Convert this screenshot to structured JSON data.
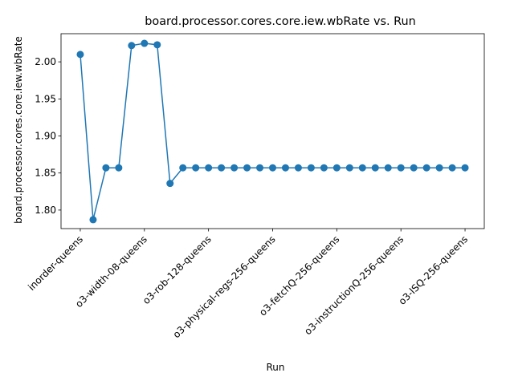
{
  "chart_data": {
    "type": "line",
    "title": "board.processor.cores.core.iew.wbRate vs. Run",
    "xlabel": "Run",
    "ylabel": "board.processor.cores.core.iew.wbRate",
    "xlim": [
      -1.5,
      31.5
    ],
    "ylim": [
      1.775,
      2.038
    ],
    "yticks": [
      1.8,
      1.85,
      1.9,
      1.95,
      2.0
    ],
    "ytick_labels": [
      "1.80",
      "1.85",
      "1.90",
      "1.95",
      "2.00"
    ],
    "xticks": [
      0,
      5,
      10,
      15,
      20,
      25,
      30
    ],
    "xtick_labels": [
      "inorder-queens",
      "o3-width-08-queens",
      "o3-rob-128-queens",
      "o3-physical-regs-256-queens",
      "o3-fetchQ-256-queens",
      "o3-instructionQ-256-queens",
      "o3-lSQ-256-queens"
    ],
    "series": [
      {
        "color": "#1f77b4",
        "marker": "circle",
        "x": [
          0,
          1,
          2,
          3,
          4,
          5,
          6,
          7,
          8,
          9,
          10,
          11,
          12,
          13,
          14,
          15,
          16,
          17,
          18,
          19,
          20,
          21,
          22,
          23,
          24,
          25,
          26,
          27,
          28,
          29,
          30
        ],
        "y": [
          2.01,
          1.787,
          1.857,
          1.857,
          2.022,
          2.025,
          2.023,
          1.836,
          1.857,
          1.857,
          1.857,
          1.857,
          1.857,
          1.857,
          1.857,
          1.857,
          1.857,
          1.857,
          1.857,
          1.857,
          1.857,
          1.857,
          1.857,
          1.857,
          1.857,
          1.857,
          1.857,
          1.857,
          1.857,
          1.857,
          1.857
        ]
      }
    ],
    "grid": false,
    "legend": "none"
  }
}
